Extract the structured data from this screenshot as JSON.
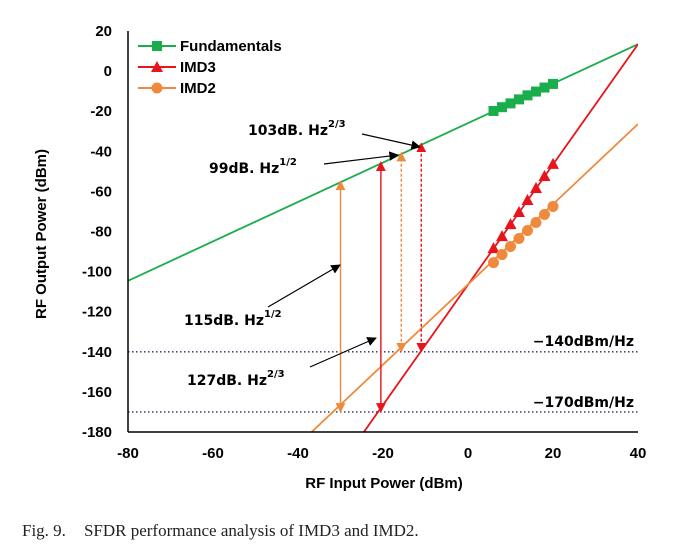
{
  "chart_data": {
    "type": "line",
    "xlabel": "RF Input Power (dBm)",
    "ylabel": "RF Output Power (dBm)",
    "xlim": [
      -80,
      40
    ],
    "ylim": [
      -180,
      20
    ],
    "xticks": [
      "-80",
      "-60",
      "-40",
      "-20",
      "0",
      "20",
      "40"
    ],
    "yticks": [
      "20",
      "0",
      "-20",
      "-40",
      "-60",
      "-80",
      "-100",
      "-120",
      "-140",
      "-160",
      "-180"
    ],
    "legend_position": "top-left",
    "grid": false,
    "series": [
      {
        "name": "Fundamentals",
        "color": "#1aad4b",
        "marker": "square",
        "fit_line": [
          [
            -80,
            -104.6
          ],
          [
            40,
            13.4
          ]
        ],
        "x": [
          6,
          8,
          10,
          12,
          14,
          16,
          18,
          20
        ],
        "y": [
          -19.9,
          -18.0,
          -16.1,
          -14.1,
          -12.1,
          -10.2,
          -8.2,
          -6.4
        ]
      },
      {
        "name": "IMD3",
        "color": "#e8131b",
        "marker": "triangle",
        "fit_line": [
          [
            -24.5,
            -180
          ],
          [
            40,
            13.4
          ]
        ],
        "x": [
          6,
          8,
          10,
          12,
          14,
          16,
          18,
          20
        ],
        "y": [
          -88.3,
          -82.3,
          -76.3,
          -70.3,
          -64.3,
          -58.3,
          -52.3,
          -46.3
        ]
      },
      {
        "name": "IMD2",
        "color": "#ef8a3c",
        "marker": "circle",
        "fit_line": [
          [
            -36.8,
            -180
          ],
          [
            40,
            -26.4
          ]
        ],
        "x": [
          6,
          8,
          10,
          12,
          14,
          16,
          18,
          20
        ],
        "y": [
          -95.5,
          -91.5,
          -87.5,
          -83.5,
          -79.5,
          -75.5,
          -71.5,
          -67.5
        ]
      }
    ],
    "reference_lines": [
      {
        "y": -140,
        "label": "−140dBm/Hz"
      },
      {
        "y": -170,
        "label": "−170dBm/Hz"
      }
    ],
    "sfdr_arrows": [
      {
        "x": -30,
        "y_from": -170,
        "y_to": -54.9,
        "color": "#ef8a3c",
        "style": "solid"
      },
      {
        "x": -20.5,
        "y_from": -170,
        "y_to": -45.4,
        "color": "#e8131b",
        "style": "solid"
      },
      {
        "x": -15.7,
        "y_from": -140,
        "y_to": -40.6,
        "color": "#ef8a3c",
        "style": "dashed"
      },
      {
        "x": -11,
        "y_from": -140,
        "y_to": -36.0,
        "color": "#e8131b",
        "style": "dashed"
      }
    ],
    "annotations": [
      {
        "label": "103dB. Hz",
        "sup": "2/3"
      },
      {
        "label": "99dB. Hz",
        "sup": "1/2"
      },
      {
        "label": "115dB. Hz",
        "sup": "1/2"
      },
      {
        "label": "127dB. Hz",
        "sup": "2/3"
      }
    ]
  },
  "caption": {
    "label": "Fig. 9.",
    "text": "SFDR performance analysis of IMD3 and IMD2."
  }
}
